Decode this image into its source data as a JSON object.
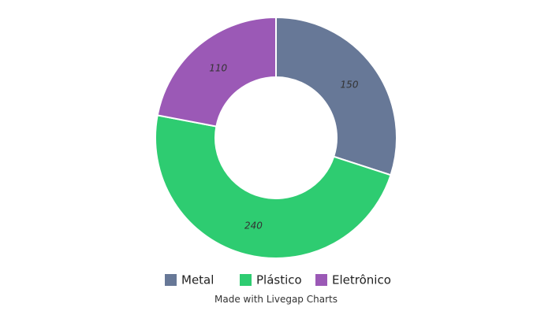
{
  "chart_data": {
    "type": "pie",
    "hole": true,
    "categories": [
      "Metal",
      "Plástico",
      "Eletrônico"
    ],
    "values": [
      150,
      240,
      110
    ],
    "colors": [
      "#677897",
      "#2ecc71",
      "#9b59b6"
    ],
    "value_labels": [
      "150",
      "240",
      "110"
    ],
    "legend": {
      "placement": "bottom",
      "items": [
        "Metal",
        "Plástico",
        "Eletrônico"
      ]
    }
  },
  "footer": {
    "credit": "Made with Livegap Charts"
  }
}
